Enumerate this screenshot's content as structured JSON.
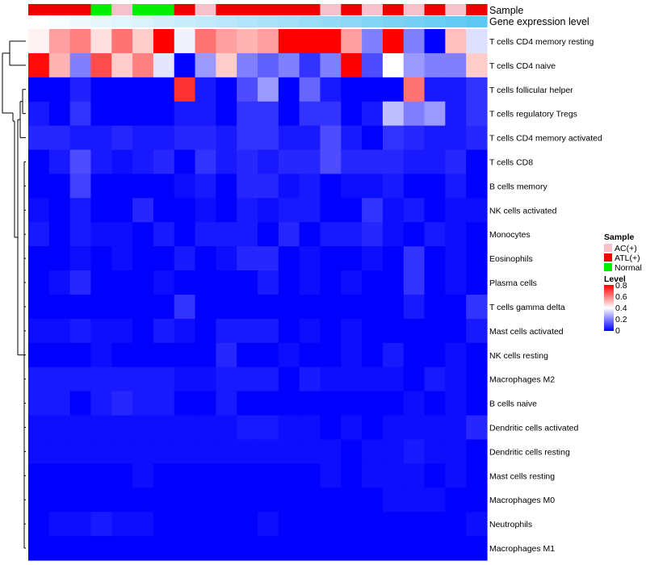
{
  "chart_data": {
    "type": "heatmap",
    "annotation_tracks": [
      "Sample",
      "Gene expression level"
    ],
    "columns": [
      {
        "sample": "ATL(+)"
      },
      {
        "sample": "ATL(+)"
      },
      {
        "sample": "ATL(+)"
      },
      {
        "sample": "Normal"
      },
      {
        "sample": "AC(+)"
      },
      {
        "sample": "Normal"
      },
      {
        "sample": "Normal"
      },
      {
        "sample": "ATL(+)"
      },
      {
        "sample": "AC(+)"
      },
      {
        "sample": "ATL(+)"
      },
      {
        "sample": "ATL(+)"
      },
      {
        "sample": "ATL(+)"
      },
      {
        "sample": "ATL(+)"
      },
      {
        "sample": "ATL(+)"
      },
      {
        "sample": "AC(+)"
      },
      {
        "sample": "ATL(+)"
      },
      {
        "sample": "AC(+)"
      },
      {
        "sample": "ATL(+)"
      },
      {
        "sample": "AC(+)"
      },
      {
        "sample": "ATL(+)"
      },
      {
        "sample": "AC(+)"
      },
      {
        "sample": "ATL(+)"
      }
    ],
    "gene_expression_gradient": [
      "#ffffff",
      "#5ec8f2"
    ],
    "rows": [
      "T cells CD4 memory resting",
      "T cells CD4 naive",
      "T cells follicular helper",
      "T cells regulatory  Tregs",
      "T cells CD4 memory activated",
      "T cells CD8",
      "B cells memory",
      "NK cells activated",
      "Monocytes",
      "Eosinophils",
      "Plasma cells",
      "T cells gamma delta",
      "Mast cells activated",
      "NK cells resting",
      "Macrophages M2",
      "B cells naive",
      "Dendritic cells activated",
      "Dendritic cells resting",
      "Mast cells resting",
      "Macrophages M0",
      "Neutrophils",
      "Macrophages M1"
    ],
    "values": [
      [
        0.42,
        0.55,
        0.6,
        0.45,
        0.62,
        0.48,
        0.8,
        0.38,
        0.62,
        0.55,
        0.52,
        0.55,
        0.8,
        0.8,
        0.8,
        0.55,
        0.2,
        0.8,
        0.2,
        0.0,
        0.5,
        0.35
      ],
      [
        0.78,
        0.52,
        0.2,
        0.68,
        0.48,
        0.6,
        0.36,
        0.0,
        0.24,
        0.48,
        0.2,
        0.15,
        0.2,
        0.08,
        0.2,
        0.8,
        0.12,
        0.4,
        0.24,
        0.2,
        0.2,
        0.48
      ],
      [
        0.0,
        0.0,
        0.05,
        0.0,
        0.0,
        0.0,
        0.0,
        0.72,
        0.04,
        0.0,
        0.12,
        0.24,
        0.0,
        0.16,
        0.04,
        0.0,
        0.0,
        0.0,
        0.62,
        0.04,
        0.04,
        0.08
      ],
      [
        0.04,
        0.0,
        0.08,
        0.0,
        0.0,
        0.0,
        0.0,
        0.04,
        0.04,
        0.0,
        0.08,
        0.08,
        0.0,
        0.08,
        0.08,
        0.0,
        0.04,
        0.3,
        0.2,
        0.24,
        0.04,
        0.08
      ],
      [
        0.06,
        0.06,
        0.04,
        0.04,
        0.06,
        0.04,
        0.04,
        0.06,
        0.06,
        0.04,
        0.08,
        0.08,
        0.04,
        0.04,
        0.12,
        0.04,
        0.0,
        0.08,
        0.06,
        0.04,
        0.04,
        0.06
      ],
      [
        0.0,
        0.04,
        0.12,
        0.04,
        0.02,
        0.04,
        0.06,
        0.0,
        0.08,
        0.04,
        0.06,
        0.04,
        0.06,
        0.06,
        0.12,
        0.06,
        0.06,
        0.06,
        0.04,
        0.04,
        0.06,
        0.0
      ],
      [
        0.0,
        0.0,
        0.1,
        0.0,
        0.0,
        0.0,
        0.0,
        0.02,
        0.04,
        0.0,
        0.06,
        0.06,
        0.02,
        0.04,
        0.0,
        0.02,
        0.02,
        0.04,
        0.0,
        0.0,
        0.04,
        0.0
      ],
      [
        0.02,
        0.0,
        0.04,
        0.0,
        0.0,
        0.06,
        0.0,
        0.0,
        0.02,
        0.0,
        0.04,
        0.02,
        0.04,
        0.04,
        0.0,
        0.0,
        0.08,
        0.02,
        0.04,
        0.0,
        0.02,
        0.02
      ],
      [
        0.04,
        0.0,
        0.04,
        0.02,
        0.02,
        0.0,
        0.04,
        0.0,
        0.04,
        0.04,
        0.04,
        0.0,
        0.06,
        0.0,
        0.04,
        0.04,
        0.06,
        0.02,
        0.0,
        0.04,
        0.02,
        0.0
      ],
      [
        0.0,
        0.0,
        0.02,
        0.0,
        0.02,
        0.0,
        0.0,
        0.04,
        0.0,
        0.02,
        0.06,
        0.06,
        0.0,
        0.02,
        0.0,
        0.0,
        0.02,
        0.0,
        0.08,
        0.0,
        0.02,
        0.0
      ],
      [
        0.0,
        0.02,
        0.06,
        0.0,
        0.0,
        0.0,
        0.02,
        0.0,
        0.0,
        0.0,
        0.0,
        0.04,
        0.0,
        0.02,
        0.0,
        0.02,
        0.0,
        0.0,
        0.08,
        0.0,
        0.02,
        0.0
      ],
      [
        0.0,
        0.0,
        0.0,
        0.0,
        0.0,
        0.0,
        0.0,
        0.08,
        0.0,
        0.0,
        0.0,
        0.0,
        0.0,
        0.0,
        0.0,
        0.0,
        0.0,
        0.0,
        0.04,
        0.0,
        0.0,
        0.08
      ],
      [
        0.02,
        0.02,
        0.04,
        0.02,
        0.02,
        0.0,
        0.04,
        0.02,
        0.0,
        0.04,
        0.04,
        0.04,
        0.0,
        0.02,
        0.0,
        0.02,
        0.0,
        0.0,
        0.0,
        0.0,
        0.0,
        0.04
      ],
      [
        0.0,
        0.0,
        0.0,
        0.02,
        0.0,
        0.0,
        0.0,
        0.0,
        0.0,
        0.06,
        0.0,
        0.0,
        0.02,
        0.0,
        0.0,
        0.02,
        0.0,
        0.04,
        0.0,
        0.0,
        0.02,
        0.0
      ],
      [
        0.04,
        0.04,
        0.04,
        0.04,
        0.04,
        0.04,
        0.04,
        0.02,
        0.02,
        0.04,
        0.04,
        0.04,
        0.0,
        0.04,
        0.02,
        0.02,
        0.02,
        0.02,
        0.0,
        0.04,
        0.02,
        0.0
      ],
      [
        0.04,
        0.04,
        0.0,
        0.04,
        0.06,
        0.04,
        0.04,
        0.0,
        0.0,
        0.04,
        0.0,
        0.0,
        0.0,
        0.0,
        0.0,
        0.0,
        0.0,
        0.0,
        0.02,
        0.0,
        0.02,
        0.0
      ],
      [
        0.02,
        0.02,
        0.02,
        0.02,
        0.02,
        0.02,
        0.02,
        0.02,
        0.02,
        0.02,
        0.04,
        0.04,
        0.02,
        0.02,
        0.0,
        0.02,
        0.0,
        0.02,
        0.02,
        0.02,
        0.02,
        0.06
      ],
      [
        0.02,
        0.02,
        0.02,
        0.02,
        0.02,
        0.02,
        0.02,
        0.02,
        0.02,
        0.02,
        0.02,
        0.02,
        0.02,
        0.02,
        0.02,
        0.0,
        0.02,
        0.02,
        0.04,
        0.02,
        0.02,
        0.0
      ],
      [
        0.0,
        0.0,
        0.0,
        0.0,
        0.0,
        0.02,
        0.0,
        0.0,
        0.0,
        0.0,
        0.0,
        0.0,
        0.0,
        0.0,
        0.02,
        0.0,
        0.02,
        0.02,
        0.02,
        0.0,
        0.02,
        0.0
      ],
      [
        0.0,
        0.0,
        0.0,
        0.0,
        0.0,
        0.0,
        0.0,
        0.0,
        0.0,
        0.0,
        0.0,
        0.0,
        0.0,
        0.0,
        0.0,
        0.0,
        0.0,
        0.02,
        0.02,
        0.02,
        0.0,
        0.0
      ],
      [
        0.0,
        0.02,
        0.02,
        0.04,
        0.02,
        0.02,
        0.0,
        0.0,
        0.0,
        0.0,
        0.0,
        0.02,
        0.0,
        0.0,
        0.0,
        0.0,
        0.0,
        0.0,
        0.0,
        0.0,
        0.0,
        0.02
      ],
      [
        0.0,
        0.0,
        0.0,
        0.0,
        0.0,
        0.0,
        0.0,
        0.0,
        0.0,
        0.0,
        0.0,
        0.0,
        0.0,
        0.0,
        0.0,
        0.0,
        0.0,
        0.0,
        0.0,
        0.0,
        0.0,
        0.0
      ]
    ],
    "legend": {
      "sample_title": "Sample",
      "sample_entries": [
        {
          "label": "AC(+)",
          "color": "#f7c1cc"
        },
        {
          "label": "ATL(+)",
          "color": "#ee0000"
        },
        {
          "label": "Normal",
          "color": "#00ee00"
        }
      ],
      "level_title": "Level",
      "level_ticks": [
        "0.8",
        "0.6",
        "0.4",
        "0.2",
        "0"
      ],
      "level_range": [
        0,
        0.8
      ]
    },
    "colorscale": {
      "low": "#0000ff",
      "mid": "#ffffff",
      "high": "#ff0000",
      "mid_value": 0.4
    }
  }
}
